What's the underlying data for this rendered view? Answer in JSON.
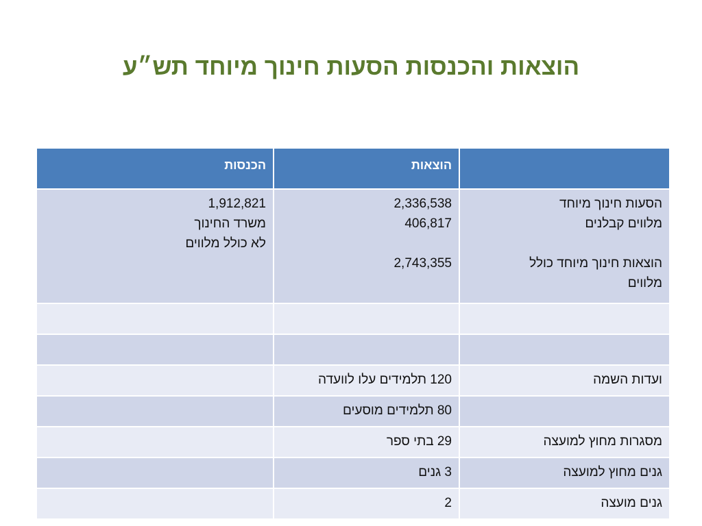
{
  "title": "הוצאות והכנסות הסעות חינוך מיוחד תש״ע",
  "table": {
    "headers": [
      "",
      "הוצאות",
      "הכנסות"
    ],
    "rows": [
      {
        "c1": [
          "הסעות חינוך מיוחד",
          "מלווים קבלנים",
          "",
          "הוצאות חינוך מיוחד כולל",
          "מלווים"
        ],
        "c2": [
          "2,336,538",
          "406,817",
          "",
          "2,743,355"
        ],
        "c3": [
          "1,912,821",
          "משרד החינוך",
          "לא כולל מלווים"
        ]
      },
      {
        "c1": "",
        "c2": "",
        "c3": ""
      },
      {
        "c1": "",
        "c2": "",
        "c3": ""
      },
      {
        "c1": "ועדות השמה",
        "c2": "120 תלמידים עלו לוועדה",
        "c3": ""
      },
      {
        "c1": "",
        "c2": "80 תלמידים מוסעים",
        "c3": ""
      },
      {
        "c1": "מסגרות מחוץ למועצה",
        "c2": "29 בתי ספר",
        "c3": ""
      },
      {
        "c1": "גנים מחוץ למועצה",
        "c2": "3 גנים",
        "c3": ""
      },
      {
        "c1": "גנים מועצה",
        "c2": "2",
        "c3": ""
      }
    ]
  }
}
